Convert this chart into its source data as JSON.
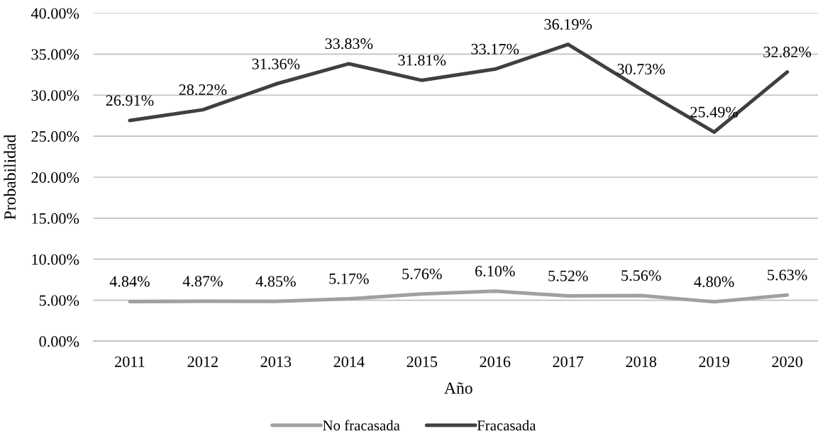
{
  "chart_data": {
    "type": "line",
    "xlabel": "Año",
    "ylabel": "Probabilidad",
    "categories": [
      "2011",
      "2012",
      "2013",
      "2014",
      "2015",
      "2016",
      "2017",
      "2018",
      "2019",
      "2020"
    ],
    "ylim": [
      0,
      40
    ],
    "yticks": [
      {
        "value": 0,
        "label": "0.00%"
      },
      {
        "value": 5,
        "label": "5.00%"
      },
      {
        "value": 10,
        "label": "10.00%"
      },
      {
        "value": 15,
        "label": "15.00%"
      },
      {
        "value": 20,
        "label": "20.00%"
      },
      {
        "value": 25,
        "label": "25.00%"
      },
      {
        "value": 30,
        "label": "30.00%"
      },
      {
        "value": 35,
        "label": "35.00%"
      },
      {
        "value": 40,
        "label": "40.00%"
      }
    ],
    "grid": "y",
    "legend": "bottom",
    "line_style": "solid",
    "series": [
      {
        "name": "No fracasada",
        "color": "#a0a0a0",
        "values": [
          4.84,
          4.87,
          4.85,
          5.17,
          5.76,
          6.1,
          5.52,
          5.56,
          4.8,
          5.63
        ],
        "value_labels": [
          "4.84%",
          "4.87%",
          "4.85%",
          "5.17%",
          "5.76%",
          "6.10%",
          "5.52%",
          "5.56%",
          "4.80%",
          "5.63%"
        ]
      },
      {
        "name": "Fracasada",
        "color": "#404040",
        "values": [
          26.91,
          28.22,
          31.36,
          33.83,
          31.81,
          33.17,
          36.19,
          30.73,
          25.49,
          32.82
        ],
        "value_labels": [
          "26.91%",
          "28.22%",
          "31.36%",
          "33.83%",
          "31.81%",
          "33.17%",
          "36.19%",
          "30.73%",
          "25.49%",
          "32.82%"
        ]
      }
    ]
  }
}
